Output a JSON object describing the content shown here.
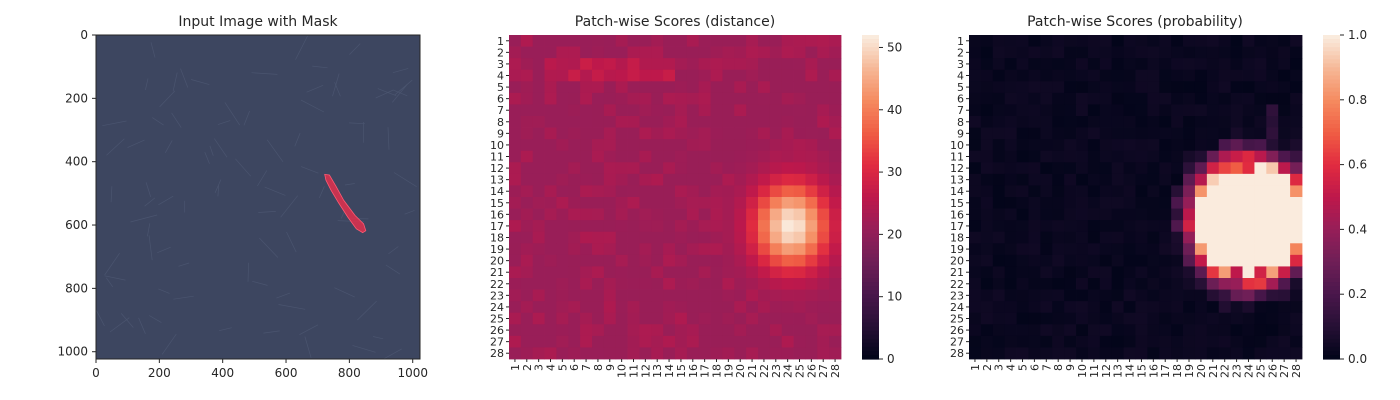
{
  "chart_data": [
    {
      "type": "image",
      "title": "Input Image with Mask",
      "xlim": [
        0,
        1023
      ],
      "ylim": [
        1023,
        0
      ],
      "xticks": [
        0,
        200,
        400,
        600,
        800,
        1000
      ],
      "yticks": [
        0,
        200,
        400,
        600,
        800,
        1000
      ],
      "image_color": "#3d4660",
      "mask_color": "#e0304e",
      "mask_polygon": [
        [
          722,
          440
        ],
        [
          737,
          442
        ],
        [
          758,
          478
        ],
        [
          782,
          522
        ],
        [
          818,
          570
        ],
        [
          845,
          596
        ],
        [
          852,
          618
        ],
        [
          842,
          624
        ],
        [
          822,
          612
        ],
        [
          795,
          575
        ],
        [
          766,
          530
        ],
        [
          742,
          490
        ],
        [
          726,
          458
        ]
      ]
    },
    {
      "type": "heatmap",
      "title": "Patch-wise Scores (distance)",
      "rows": 28,
      "cols": 28,
      "row_labels": [
        "1",
        "2",
        "3",
        "4",
        "5",
        "6",
        "7",
        "8",
        "9",
        "10",
        "11",
        "12",
        "13",
        "14",
        "15",
        "16",
        "17",
        "18",
        "19",
        "20",
        "21",
        "22",
        "23",
        "24",
        "25",
        "26",
        "27",
        "28"
      ],
      "col_labels": [
        "1",
        "2",
        "3",
        "4",
        "5",
        "6",
        "7",
        "8",
        "9",
        "10",
        "11",
        "12",
        "13",
        "14",
        "15",
        "16",
        "17",
        "18",
        "19",
        "20",
        "21",
        "22",
        "23",
        "24",
        "25",
        "26",
        "27",
        "28"
      ],
      "colorbar_ticks": [
        0,
        10,
        20,
        30,
        40,
        50
      ],
      "vmin": 0,
      "vmax": 52,
      "colormap": "rocket",
      "background_level": 21,
      "hotspot": {
        "center_row": 17,
        "center_col": 24.3,
        "peak": 52,
        "sigma_row": 2.6,
        "sigma_col": 2.2
      },
      "secondary_rows": [
        3,
        4
      ],
      "secondary_level": 26
    },
    {
      "type": "heatmap",
      "title": "Patch-wise Scores (probability)",
      "rows": 28,
      "cols": 28,
      "row_labels": [
        "1",
        "2",
        "3",
        "4",
        "5",
        "6",
        "7",
        "8",
        "9",
        "10",
        "11",
        "12",
        "13",
        "14",
        "15",
        "16",
        "17",
        "18",
        "19",
        "20",
        "21",
        "22",
        "23",
        "24",
        "25",
        "26",
        "27",
        "28"
      ],
      "col_labels": [
        "1",
        "2",
        "3",
        "4",
        "5",
        "6",
        "7",
        "8",
        "9",
        "10",
        "11",
        "12",
        "13",
        "14",
        "15",
        "16",
        "17",
        "18",
        "19",
        "20",
        "21",
        "22",
        "23",
        "24",
        "25",
        "26",
        "27",
        "28"
      ],
      "colorbar_ticks": [
        0.0,
        0.2,
        0.4,
        0.6,
        0.8,
        1.0
      ],
      "colorbar_tick_labels": [
        "0.0",
        "0.2",
        "0.4",
        "0.6",
        "0.8",
        "1.0"
      ],
      "vmin": 0,
      "vmax": 1,
      "colormap": "rocket",
      "hotspot": {
        "center_row": 16.5,
        "center_col": 24,
        "sigma_row": 2.7,
        "sigma_col": 2.4,
        "gain": 5.5
      },
      "extra_cells": [
        {
          "row": 12,
          "col": 21,
          "value": 0.55
        },
        {
          "row": 12,
          "col": 22,
          "value": 0.65
        },
        {
          "row": 12,
          "col": 23,
          "value": 0.7
        },
        {
          "row": 12,
          "col": 24,
          "value": 0.6
        },
        {
          "row": 21,
          "col": 23,
          "value": 0.5
        },
        {
          "row": 21,
          "col": 25,
          "value": 0.55
        },
        {
          "row": 22,
          "col": 23,
          "value": 0.4
        },
        {
          "row": 7,
          "col": 26,
          "value": 0.12
        },
        {
          "row": 8,
          "col": 26,
          "value": 0.1
        },
        {
          "row": 9,
          "col": 26,
          "value": 0.12
        }
      ]
    }
  ]
}
